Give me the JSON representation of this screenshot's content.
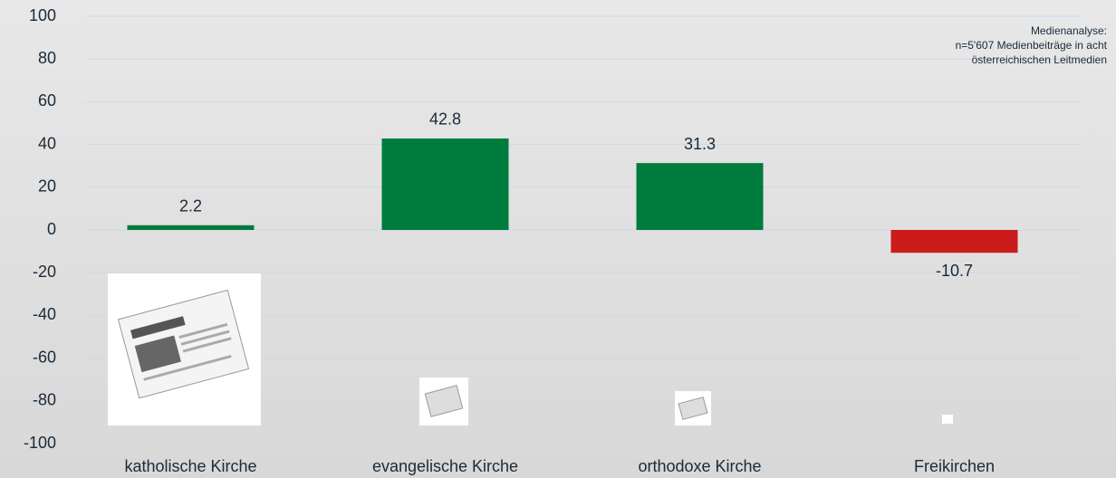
{
  "chart_data": {
    "type": "bar",
    "annotation": [
      "Medienanalyse:",
      "n=5'607 Medienbeiträge in acht",
      "österreichischen Leitmedien"
    ],
    "categories": [
      "katholische Kirche",
      "evangelische Kirche",
      "orthodoxe Kirche",
      "Freikirchen"
    ],
    "values": [
      2.2,
      42.8,
      31.3,
      -10.7
    ],
    "colors": [
      "#007b3e",
      "#007b3e",
      "#007b3e",
      "#cc1b1b"
    ],
    "ylim": [
      -100,
      100
    ],
    "yticks": [
      -100,
      -80,
      -60,
      -40,
      -20,
      0,
      20,
      40,
      60,
      80,
      100
    ],
    "grid": true
  }
}
